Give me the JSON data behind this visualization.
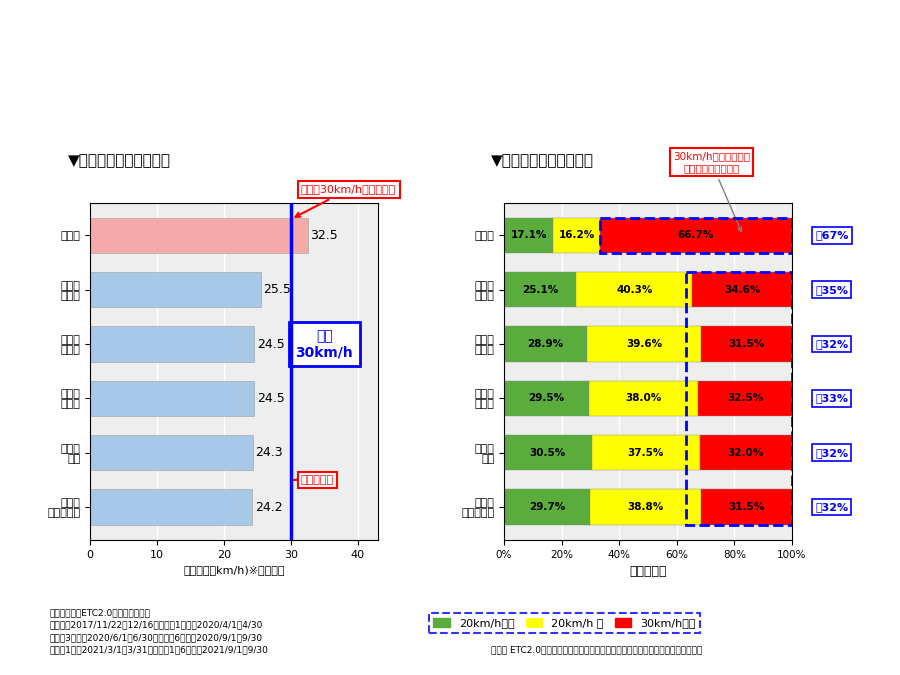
{
  "left_title": "▼走行速度（対策区間）",
  "right_title": "▼走行分布（対策区間）",
  "bar_labels_left": [
    "対策前",
    "施工後\n１ヶ月",
    "施工後\n３ヶ月",
    "施工後\n６ヶ月",
    "施工後\n１年",
    "施工後\n１年６ヶ月"
  ],
  "bar_labels_right": [
    "対策前",
    "施工後\n１ヶ月",
    "施工後\n３ヶ月",
    "施工後\n６ヶ月",
    "施工後\n１年",
    "施工後\n１年６ヶ月"
  ],
  "speeds": [
    32.5,
    25.5,
    24.5,
    24.5,
    24.3,
    24.2
  ],
  "speed_colors": [
    "#F4AAAA",
    "#A8C8E8",
    "#A8C8E8",
    "#A8C8E8",
    "#A8C8E8",
    "#A8C8E8"
  ],
  "target_speed": 30,
  "dist_green": [
    17.1,
    25.1,
    28.9,
    29.5,
    30.5,
    29.7
  ],
  "dist_yellow": [
    16.2,
    40.3,
    39.6,
    38.0,
    37.5,
    38.8
  ],
  "dist_red": [
    66.7,
    34.6,
    31.5,
    32.5,
    32.0,
    31.5
  ],
  "approx_labels": [
    "約67%",
    "約35%",
    "約32%",
    "約33%",
    "約32%",
    "約32%"
  ],
  "green_color": "#5AAD3C",
  "yellow_color": "#FFFF00",
  "red_color": "#FF0000",
  "xlabel_left": "走行速度（km/h)※平均速度",
  "xlabel_right": "割合（％）",
  "footnote_left": "分析データ：ETC2.0プローブデータ\n対策前：2017/11/22～12/16、施工後1ヶ月：2020/4/1～4/30\n施工後3ヶ月：2020/6/1～6/30、施工後6ヶ月：2020/9/1～9/30\n施工後1年：2021/3/1～3/31、施工後1年6ヶ月：2021/9/1～9/30",
  "footnote_right": "資料： ETC2.0ビッグデータ分析結果（国土交通省提供）を加工し、横浜市が作成",
  "annotation_top_left": "目標の30km/h以下に抑制",
  "annotation_bottom_left": "効果が継続",
  "annotation_target_label": "目標\n30km/h",
  "annotation_top_right": "30km/h以上で走行す\nる車両の割合が減少",
  "legend_green": "20km/h未満",
  "legend_yellow": "20km/h 台",
  "legend_red": "30km/h以上",
  "bg_color": "#FFFFFF"
}
